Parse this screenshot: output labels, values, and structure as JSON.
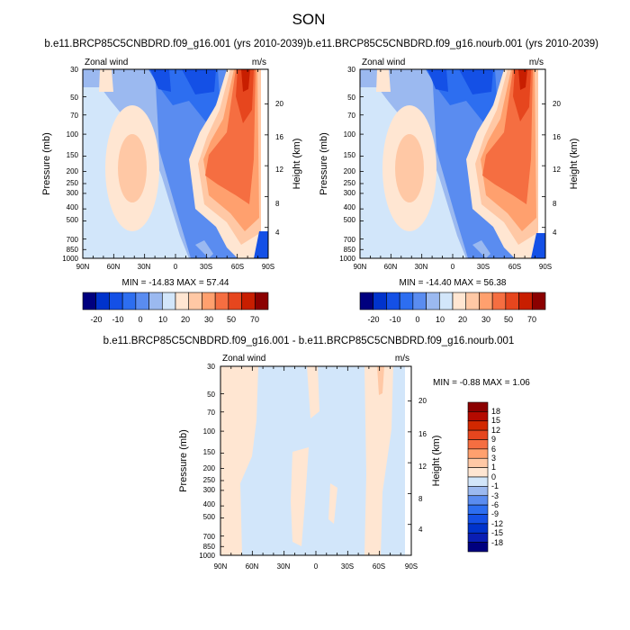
{
  "page_title": "SON",
  "chart_data": [
    {
      "type": "heatmap",
      "title": "b.e11.BRCP85C5CNBDRD.f09_g16.001 (yrs 2010-2039)",
      "left_label": "Zonal wind",
      "right_label": "m/s",
      "xlabel": "",
      "ylabel": "Pressure (mb)",
      "ylabel_right": "Height (km)",
      "x_ticks": [
        "90N",
        "60N",
        "30N",
        "0",
        "30S",
        "60S",
        "90S"
      ],
      "y_ticks": [
        "30",
        "50",
        "70",
        "100",
        "150",
        "200",
        "250",
        "300",
        "400",
        "500",
        "700",
        "850",
        "1000"
      ],
      "height_ticks": [
        "20",
        "16",
        "12",
        "8",
        "4"
      ],
      "ylim": [
        1000,
        30
      ],
      "stats": "MIN = -14.83  MAX =  57.44",
      "min": -14.83,
      "max": 57.44,
      "colorbar_labels": [
        "-20",
        "-10",
        "0",
        "10",
        "20",
        "30",
        "50",
        "70"
      ],
      "scale_colors": [
        "#00007f",
        "#0033cc",
        "#1450e6",
        "#2d6ef0",
        "#5a8cf0",
        "#9bb9f0",
        "#d2e6fa",
        "#ffe6d2",
        "#ffc8a5",
        "#ffa06e",
        "#f56e41",
        "#e6461e",
        "#c81e00",
        "#8b0000"
      ]
    },
    {
      "type": "heatmap",
      "title": "b.e11.BRCP85C5CNBDRD.f09_g16.nourb.001 (yrs 2010-2039)",
      "left_label": "Zonal wind",
      "right_label": "m/s",
      "xlabel": "",
      "ylabel": "Pressure (mb)",
      "ylabel_right": "Height (km)",
      "x_ticks": [
        "90N",
        "60N",
        "30N",
        "0",
        "30S",
        "60S",
        "90S"
      ],
      "y_ticks": [
        "30",
        "50",
        "70",
        "100",
        "150",
        "200",
        "250",
        "300",
        "400",
        "500",
        "700",
        "850",
        "1000"
      ],
      "height_ticks": [
        "20",
        "16",
        "12",
        "8",
        "4"
      ],
      "ylim": [
        1000,
        30
      ],
      "stats": "MIN = -14.40  MAX =  56.38",
      "min": -14.4,
      "max": 56.38,
      "colorbar_labels": [
        "-20",
        "-10",
        "0",
        "10",
        "20",
        "30",
        "50",
        "70"
      ],
      "scale_colors": [
        "#00007f",
        "#0033cc",
        "#1450e6",
        "#2d6ef0",
        "#5a8cf0",
        "#9bb9f0",
        "#d2e6fa",
        "#ffe6d2",
        "#ffc8a5",
        "#ffa06e",
        "#f56e41",
        "#e6461e",
        "#c81e00",
        "#8b0000"
      ]
    },
    {
      "type": "heatmap",
      "title": "b.e11.BRCP85C5CNBDRD.f09_g16.001 - b.e11.BRCP85C5CNBDRD.f09_g16.nourb.001",
      "left_label": "Zonal wind",
      "right_label": "m/s",
      "xlabel": "",
      "ylabel": "Pressure (mb)",
      "ylabel_right": "Height (km)",
      "x_ticks": [
        "90N",
        "60N",
        "30N",
        "0",
        "30S",
        "60S",
        "90S"
      ],
      "y_ticks": [
        "30",
        "50",
        "70",
        "100",
        "150",
        "200",
        "250",
        "300",
        "400",
        "500",
        "700",
        "850",
        "1000"
      ],
      "height_ticks": [
        "20",
        "16",
        "12",
        "8",
        "4"
      ],
      "ylim": [
        1000,
        30
      ],
      "stats": "MIN = -0.88  MAX =   1.06",
      "min": -0.88,
      "max": 1.06,
      "colorbar_labels": [
        "18",
        "15",
        "12",
        "9",
        "6",
        "3",
        "1",
        "0",
        "-1",
        "-3",
        "-6",
        "-9",
        "-12",
        "-15",
        "-18"
      ],
      "scale_colors": [
        "#8b0000",
        "#b40a00",
        "#d22800",
        "#e6461e",
        "#f56e41",
        "#ffa06e",
        "#ffc8a5",
        "#ffe6d2",
        "#d2e6fa",
        "#9bb9f0",
        "#5a8cf0",
        "#2d6ef0",
        "#1450e6",
        "#0033cc",
        "#0a1eb4",
        "#00007f"
      ]
    }
  ]
}
